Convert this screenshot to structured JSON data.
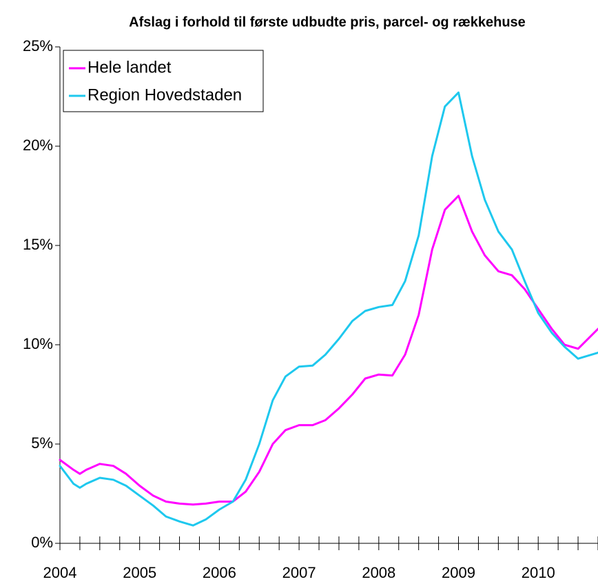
{
  "chart_data": {
    "type": "line",
    "title": "Afslag i forhold til første udbudte pris, parcel- og rækkehuse",
    "x": [
      2004,
      2004.17,
      2004.25,
      2004.33,
      2004.5,
      2004.67,
      2004.83,
      2005,
      2005.17,
      2005.33,
      2005.5,
      2005.67,
      2005.83,
      2006,
      2006.17,
      2006.33,
      2006.5,
      2006.67,
      2006.83,
      2007,
      2007.17,
      2007.33,
      2007.5,
      2007.67,
      2007.83,
      2008,
      2008.17,
      2008.33,
      2008.5,
      2008.67,
      2008.83,
      2009,
      2009.17,
      2009.33,
      2009.5,
      2009.67,
      2009.83,
      2010,
      2010.17,
      2010.33,
      2010.5,
      2010.75
    ],
    "series": [
      {
        "name": "Hele landet",
        "color": "#ff00ff",
        "values": [
          4.2,
          3.7,
          3.5,
          3.7,
          4.0,
          3.9,
          3.5,
          2.9,
          2.4,
          2.1,
          2.0,
          1.95,
          2.0,
          2.1,
          2.1,
          2.6,
          3.6,
          5.0,
          5.7,
          5.95,
          5.95,
          6.2,
          6.8,
          7.5,
          8.3,
          8.5,
          8.45,
          9.5,
          11.5,
          14.8,
          16.8,
          17.5,
          15.7,
          14.5,
          13.7,
          13.5,
          12.8,
          11.8,
          10.8,
          10.0,
          9.8,
          10.8
        ]
      },
      {
        "name": "Region Hovedstaden",
        "color": "#1ec8ee",
        "values": [
          3.9,
          3.0,
          2.8,
          3.0,
          3.3,
          3.2,
          2.9,
          2.4,
          1.9,
          1.35,
          1.1,
          0.9,
          1.2,
          1.7,
          2.1,
          3.2,
          5.0,
          7.2,
          8.4,
          8.9,
          8.95,
          9.5,
          10.3,
          11.2,
          11.7,
          11.9,
          12.0,
          13.2,
          15.5,
          19.5,
          22.0,
          22.7,
          19.5,
          17.3,
          15.7,
          14.8,
          13.2,
          11.6,
          10.6,
          9.9,
          9.3,
          9.6
        ]
      }
    ],
    "xlim": [
      2004,
      2010.75
    ],
    "xticks": [
      2004,
      2005,
      2006,
      2007,
      2008,
      2009,
      2010
    ],
    "x_minor_per_tick": 4,
    "ylim": [
      0,
      25
    ],
    "yticks": [
      {
        "value": 0,
        "label": "0%"
      },
      {
        "value": 5,
        "label": "5%"
      },
      {
        "value": 10,
        "label": "10%"
      },
      {
        "value": 15,
        "label": "15%"
      },
      {
        "value": 20,
        "label": "20%"
      },
      {
        "value": 25,
        "label": "25%"
      }
    ],
    "legend": "top-left",
    "grid": false
  }
}
